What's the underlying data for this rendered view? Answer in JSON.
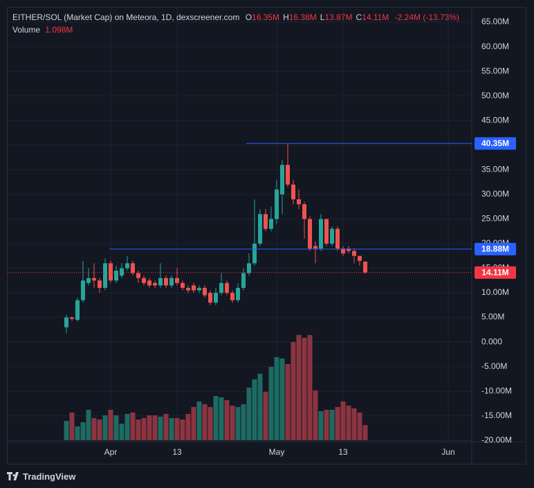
{
  "chart_data": {
    "type": "candlestick",
    "legend": {
      "title": "EITHER/SOL (Market Cap) on Meteora, 1D, dexscreener.com",
      "ohlc": [
        {
          "key": "O",
          "value": "16.35M"
        },
        {
          "key": "H",
          "value": "16.38M"
        },
        {
          "key": "L",
          "value": "13.87M"
        },
        {
          "key": "C",
          "value": "14.11M"
        }
      ],
      "change": "-2.24M (-13.73%)",
      "volume_label": "Volume",
      "volume_value": "1.098M"
    },
    "categories": [
      null,
      null,
      null,
      null,
      null,
      null,
      null,
      null,
      "Apr",
      null,
      null,
      null,
      null,
      null,
      null,
      null,
      null,
      null,
      null,
      null,
      "13",
      null,
      null,
      null,
      null,
      null,
      null,
      null,
      null,
      null,
      null,
      null,
      null,
      null,
      null,
      null,
      null,
      null,
      "May",
      null,
      null,
      null,
      null,
      null,
      null,
      null,
      null,
      null,
      null,
      null,
      "13",
      null,
      null,
      null,
      null,
      null,
      null,
      null,
      null,
      null,
      null,
      null,
      null,
      null,
      null,
      null,
      null,
      null,
      null,
      "Jun"
    ],
    "open": [
      3,
      5,
      4.5,
      8.5,
      12,
      13,
      12.5,
      11,
      16,
      12.5,
      13.5,
      15,
      16,
      14,
      13,
      12.5,
      12,
      11.5,
      13,
      11.5,
      13,
      12,
      11,
      11.5,
      10.5,
      11,
      10,
      8,
      10,
      12,
      10,
      8.5,
      11,
      14,
      16,
      20,
      26,
      23,
      25,
      30,
      36,
      32,
      29,
      28,
      25,
      19.5,
      19,
      25,
      20,
      23,
      19,
      19,
      18.5,
      17.5,
      16.35,
      null,
      null,
      null,
      null,
      null,
      null,
      null,
      null,
      null,
      null,
      null,
      null,
      null,
      null,
      null
    ],
    "high": [
      5.5,
      5.2,
      9,
      16.5,
      15,
      16,
      13,
      17,
      16.5,
      15.5,
      16,
      17.5,
      16.5,
      14.5,
      13.5,
      13,
      12.5,
      16,
      13.5,
      13.5,
      15,
      12.5,
      11.5,
      12,
      11.5,
      11.5,
      10.5,
      11,
      14,
      12.5,
      10.5,
      12,
      15,
      18,
      29,
      27,
      27,
      27.5,
      33,
      37,
      40.35,
      33,
      31,
      28.5,
      25.5,
      20.5,
      26,
      25,
      23.5,
      23.5,
      19.5,
      19.5,
      19,
      17.5,
      16.38,
      null,
      null,
      null,
      null,
      null,
      null,
      null,
      null,
      null,
      null,
      null,
      null,
      null,
      null,
      null
    ],
    "low": [
      1.8,
      4.3,
      4.2,
      8,
      11.5,
      11,
      10,
      10.5,
      12,
      12,
      13,
      14.5,
      13.5,
      12,
      11.5,
      11,
      11,
      11,
      11,
      11,
      11.5,
      10.5,
      10,
      10,
      10,
      9,
      7.5,
      7.5,
      9.5,
      9.5,
      8,
      8,
      10.5,
      13.5,
      15.5,
      19.5,
      22.5,
      22.5,
      24,
      26,
      31.5,
      28,
      27,
      21,
      18.5,
      16,
      18.5,
      19.5,
      19.5,
      18.5,
      17.5,
      18,
      16,
      15.5,
      13.87,
      null,
      null,
      null,
      null,
      null,
      null,
      null,
      null,
      null,
      null,
      null,
      null,
      null,
      null,
      null
    ],
    "close": [
      5,
      4.7,
      8.5,
      12.5,
      13,
      12.5,
      11,
      16,
      12.5,
      14.5,
      15,
      16,
      14,
      13,
      12,
      11.5,
      11.5,
      13,
      11.5,
      13,
      12,
      11,
      10.5,
      10.5,
      11,
      9.5,
      8,
      10,
      12,
      10,
      8.5,
      11,
      14,
      16,
      20,
      26,
      23,
      25,
      31,
      36,
      32,
      29,
      28,
      25,
      19,
      19,
      25,
      20,
      23,
      19,
      18,
      18.5,
      17.5,
      16.5,
      14.11,
      null,
      null,
      null,
      null,
      null,
      null,
      null,
      null,
      null,
      null,
      null,
      null,
      null,
      null,
      null
    ],
    "volume": [
      1.4,
      2.0,
      1.0,
      1.3,
      2.2,
      1.6,
      1.5,
      1.8,
      2.2,
      1.8,
      1.2,
      1.9,
      2.0,
      1.5,
      1.6,
      1.8,
      1.8,
      1.7,
      1.9,
      1.6,
      1.6,
      1.5,
      1.9,
      2.4,
      2.8,
      2.6,
      2.4,
      3.2,
      3.1,
      2.9,
      2.5,
      2.4,
      2.6,
      3.8,
      4.4,
      4.8,
      3.5,
      5.3,
      6.0,
      5.9,
      5.5,
      7.1,
      7.6,
      7.4,
      7.6,
      3.6,
      2.1,
      2.2,
      2.2,
      2.4,
      2.8,
      2.5,
      2.3,
      2.0,
      1.098,
      null,
      null,
      null,
      null,
      null,
      null,
      null,
      null,
      null,
      null,
      null,
      null,
      null,
      null,
      null
    ],
    "volume_lim": [
      0,
      11
    ],
    "up_color": "#26a69a",
    "down_color": "#ef5350",
    "up_volume_color": "#1d6b63",
    "down_volume_color": "#8c3441",
    "ylim": [
      -20.1,
      68.1
    ],
    "yticks": [
      {
        "value": 65,
        "label": "65.00M"
      },
      {
        "value": 60,
        "label": "60.00M"
      },
      {
        "value": 55,
        "label": "55.00M"
      },
      {
        "value": 50,
        "label": "50.00M"
      },
      {
        "value": 45,
        "label": "45.00M"
      },
      {
        "value": 40,
        "label": "40.00M"
      },
      {
        "value": 35,
        "label": "35.00M"
      },
      {
        "value": 30,
        "label": "30.00M"
      },
      {
        "value": 25,
        "label": "25.00M"
      },
      {
        "value": 20,
        "label": "20.00M"
      },
      {
        "value": 15,
        "label": "15.00M"
      },
      {
        "value": 10,
        "label": "10.00M"
      },
      {
        "value": 5,
        "label": "5.00M"
      },
      {
        "value": 0,
        "label": "0.000"
      },
      {
        "value": -5,
        "label": "-5.00M"
      },
      {
        "value": -10,
        "label": "-10.00M"
      },
      {
        "value": -15,
        "label": "-15.00M"
      },
      {
        "value": -20,
        "label": "-20.00M"
      }
    ],
    "grid": true,
    "price_lines": [
      {
        "value": 40.35,
        "label": "40.35M",
        "color": "#2962ff"
      },
      {
        "value": 18.88,
        "label": "18.88M",
        "color": "#2962ff"
      },
      {
        "value": 14.11,
        "label": "14.11M",
        "color": "#f23645",
        "style": "dotted"
      }
    ],
    "branding": "TradingView"
  }
}
